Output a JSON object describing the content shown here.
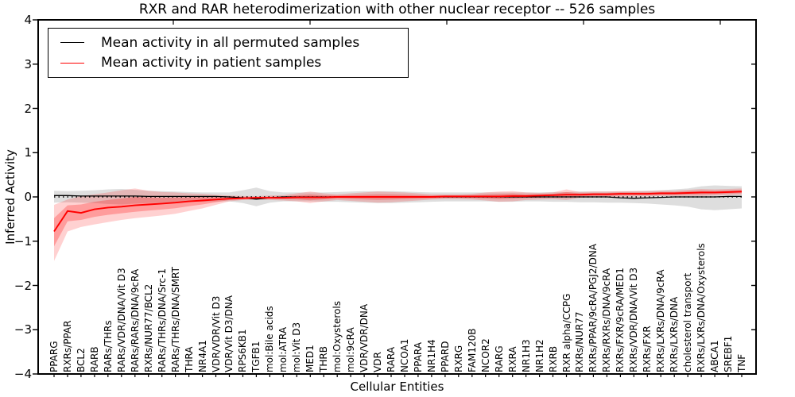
{
  "figure": {
    "title": "RXR and RAR heterodimerization with other nuclear receptor -- 526 samples",
    "xlabel": "Cellular Entities",
    "ylabel": "Inferred Activity"
  },
  "legend": {
    "items": [
      {
        "label": "Mean activity in all permuted samples",
        "color": "#000000"
      },
      {
        "label": "Mean activity in patient samples",
        "color": "#ff0000"
      }
    ]
  },
  "chart_data": {
    "type": "line",
    "title": "RXR and RAR heterodimerization with other nuclear receptor -- 526 samples",
    "xlabel": "Cellular Entities",
    "ylabel": "Inferred Activity",
    "ylim": [
      -4,
      4
    ],
    "grid": false,
    "legend_position": "upper left",
    "yticks": [
      {
        "value": 4,
        "label": "4"
      },
      {
        "value": 3,
        "label": "3"
      },
      {
        "value": 2,
        "label": "2"
      },
      {
        "value": 1,
        "label": "1"
      },
      {
        "value": 0,
        "label": "0"
      },
      {
        "value": -1,
        "label": "−1"
      },
      {
        "value": -2,
        "label": "−2"
      },
      {
        "value": -3,
        "label": "−3"
      },
      {
        "value": -4,
        "label": "−4"
      }
    ],
    "categories": [
      "PPARG",
      "RXRs/PPAR",
      "BCL2",
      "RARB",
      "RARs/THRs",
      "RARs/VDR/DNA/Vit D3",
      "RARs/RARs/DNA/9cRA",
      "RXRs/NUR77/BCL2",
      "RARs/THRs/DNA/Src-1",
      "RARs/THRs/DNA/SMRT",
      "THRA",
      "NR4A1",
      "VDR/VDR/Vit D3",
      "VDR/Vit D3/DNA",
      "RPS6KB1",
      "TGFB1",
      "mol:Bile acids",
      "mol:ATRA",
      "mol:Vit D3",
      "MED1",
      "THRB",
      "mol:Oxysterols",
      "mol:9cRA",
      "VDR/VDR/DNA",
      "VDR",
      "RARA",
      "NCOA1",
      "PPARA",
      "NR1H4",
      "PPARD",
      "RXRG",
      "FAM120B",
      "NCOR2",
      "RARG",
      "RXRA",
      "NR1H3",
      "NR1H2",
      "RXRB",
      "RXR alpha/CCPG",
      "RXRs/NUR77",
      "RXRs/PPAR/9cRA/PGJ2/DNA",
      "RXRs/RXRs/DNA/9cRA",
      "RXRs/FXR/9cRA/MED1",
      "RXRs/VDR/DNA/Vit D3",
      "RXRs/FXR",
      "RXRs/LXRs/DNA/9cRA",
      "RXRs/LXRs/DNA",
      "cholesterol transport",
      "RXRs/LXRs/DNA/Oxysterols",
      "ABCA1",
      "SREBF1",
      "TNF"
    ],
    "series": [
      {
        "name": "Mean activity in all permuted samples",
        "color": "#000000",
        "values": [
          0.03,
          0.03,
          0.02,
          0.02,
          0.02,
          0.02,
          0.02,
          0.01,
          0.01,
          0.01,
          0.01,
          0.01,
          0.01,
          0.0,
          -0.02,
          -0.05,
          -0.02,
          0.0,
          0.0,
          0.0,
          0.0,
          0.0,
          0.0,
          0.0,
          0.0,
          0.0,
          0.0,
          0.0,
          0.0,
          0.0,
          0.0,
          0.0,
          0.0,
          0.0,
          0.0,
          0.0,
          0.0,
          0.0,
          0.0,
          0.0,
          0.0,
          0.0,
          -0.02,
          -0.03,
          -0.02,
          -0.01,
          0.0,
          0.0,
          0.0,
          0.0,
          0.01,
          0.01
        ]
      },
      {
        "name": "Mean activity in patient samples",
        "color": "#ff0000",
        "values": [
          -0.78,
          -0.32,
          -0.36,
          -0.28,
          -0.24,
          -0.22,
          -0.19,
          -0.17,
          -0.15,
          -0.13,
          -0.1,
          -0.08,
          -0.06,
          -0.04,
          -0.03,
          -0.02,
          -0.02,
          -0.02,
          -0.01,
          -0.01,
          -0.01,
          0.0,
          0.0,
          0.0,
          0.0,
          0.0,
          0.0,
          0.0,
          0.0,
          0.01,
          0.01,
          0.01,
          0.01,
          0.01,
          0.02,
          0.02,
          0.03,
          0.04,
          0.05,
          0.05,
          0.06,
          0.06,
          0.07,
          0.07,
          0.07,
          0.08,
          0.08,
          0.09,
          0.1,
          0.1,
          0.11,
          0.12
        ]
      }
    ],
    "bands": [
      {
        "name": "permuted samples range",
        "color": "rgba(0,0,0,0.13)",
        "lo": [
          -0.13,
          -0.12,
          -0.13,
          -0.14,
          -0.16,
          -0.17,
          -0.15,
          -0.14,
          -0.13,
          -0.12,
          -0.11,
          -0.11,
          -0.1,
          -0.1,
          -0.14,
          -0.21,
          -0.13,
          -0.1,
          -0.1,
          -0.1,
          -0.11,
          -0.11,
          -0.12,
          -0.13,
          -0.14,
          -0.14,
          -0.13,
          -0.12,
          -0.11,
          -0.1,
          -0.1,
          -0.1,
          -0.1,
          -0.11,
          -0.11,
          -0.1,
          -0.1,
          -0.11,
          -0.11,
          -0.12,
          -0.12,
          -0.13,
          -0.13,
          -0.14,
          -0.15,
          -0.17,
          -0.19,
          -0.22,
          -0.28,
          -0.3,
          -0.28,
          -0.26
        ],
        "hi": [
          0.14,
          0.13,
          0.14,
          0.15,
          0.17,
          0.18,
          0.16,
          0.14,
          0.13,
          0.12,
          0.11,
          0.1,
          0.1,
          0.1,
          0.15,
          0.21,
          0.13,
          0.1,
          0.1,
          0.1,
          0.1,
          0.11,
          0.12,
          0.13,
          0.13,
          0.13,
          0.12,
          0.11,
          0.1,
          0.1,
          0.1,
          0.1,
          0.1,
          0.1,
          0.1,
          0.1,
          0.1,
          0.11,
          0.11,
          0.12,
          0.12,
          0.12,
          0.12,
          0.13,
          0.14,
          0.15,
          0.17,
          0.19,
          0.24,
          0.26,
          0.25,
          0.24
        ]
      },
      {
        "name": "patient samples range",
        "color": "rgba(255,0,0,0.18)",
        "lo": [
          -1.45,
          -0.78,
          -0.68,
          -0.62,
          -0.57,
          -0.52,
          -0.48,
          -0.45,
          -0.42,
          -0.38,
          -0.32,
          -0.26,
          -0.18,
          -0.1,
          -0.07,
          -0.06,
          -0.07,
          -0.08,
          -0.1,
          -0.14,
          -0.1,
          -0.07,
          -0.09,
          -0.11,
          -0.13,
          -0.12,
          -0.1,
          -0.08,
          -0.06,
          -0.05,
          -0.05,
          -0.06,
          -0.08,
          -0.11,
          -0.1,
          -0.07,
          -0.06,
          -0.05,
          -0.07,
          -0.02,
          -0.01,
          -0.01,
          0.0,
          0.01,
          0.01,
          0.02,
          0.02,
          0.02,
          0.02,
          0.03,
          0.04,
          0.05
        ],
        "hi": [
          -0.18,
          -0.06,
          0.02,
          0.06,
          0.1,
          0.15,
          0.19,
          0.14,
          0.11,
          0.1,
          0.08,
          0.07,
          0.05,
          0.03,
          0.02,
          0.02,
          0.03,
          0.04,
          0.08,
          0.12,
          0.08,
          0.06,
          0.08,
          0.1,
          0.12,
          0.11,
          0.1,
          0.08,
          0.06,
          0.06,
          0.06,
          0.07,
          0.1,
          0.12,
          0.13,
          0.1,
          0.09,
          0.1,
          0.17,
          0.11,
          0.12,
          0.12,
          0.13,
          0.13,
          0.13,
          0.14,
          0.14,
          0.16,
          0.18,
          0.17,
          0.18,
          0.19
        ]
      }
    ],
    "zero_reference_line": {
      "style": "dotted",
      "color": "#000000",
      "value": 0
    }
  }
}
